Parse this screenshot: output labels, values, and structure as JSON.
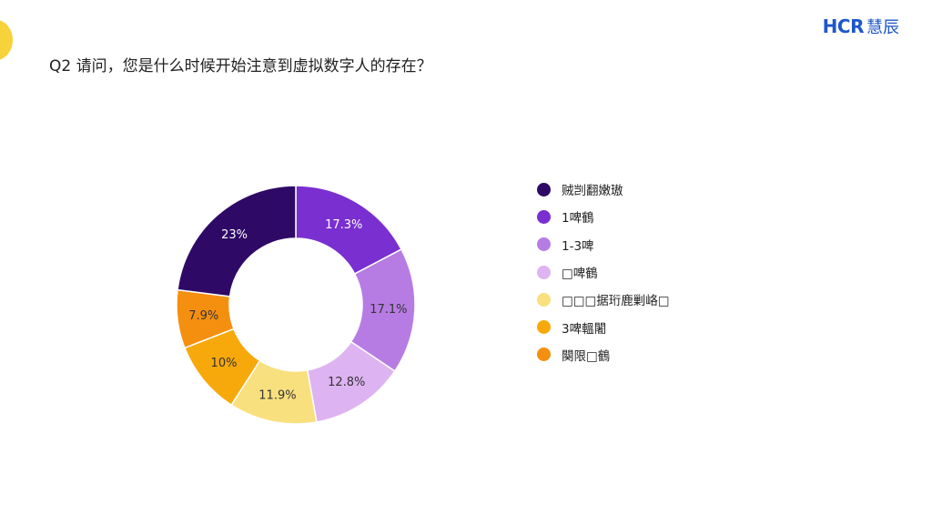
{
  "header": {
    "brand_latin": "HCR",
    "brand_cn": "慧辰"
  },
  "question": {
    "title": "Q2 请问，您是什么时候开始注意到虚拟数字人的存在？"
  },
  "chart_data": {
    "type": "pie",
    "donut": true,
    "title": "",
    "start_angle_deg": 0,
    "direction": "clockwise",
    "categories": [
      "贼剀翻嫩璈",
      "1啤鶴",
      "1-3啤",
      "□啤鶴",
      "□□□据珩鹿剿峈□",
      "3啤轀闍",
      "闋限□鶴"
    ],
    "values": [
      23,
      17.3,
      17.1,
      12.8,
      11.9,
      10,
      7.9
    ],
    "data_labels": [
      "23%",
      "17.3%",
      "17.1%",
      "12.8%",
      "11.9%",
      "10%",
      "7.9%"
    ],
    "colors": [
      "#2e0a66",
      "#7a2fd1",
      "#b77ce3",
      "#deb3f2",
      "#f9e07e",
      "#f7a90c",
      "#f58f10"
    ],
    "label_colors": [
      "#ffffff",
      "#ffffff",
      "#333333",
      "#333333",
      "#333333",
      "#333333",
      "#333333"
    ],
    "slice_order": [
      1,
      2,
      3,
      4,
      5,
      6,
      0
    ],
    "legend_position": "right"
  }
}
